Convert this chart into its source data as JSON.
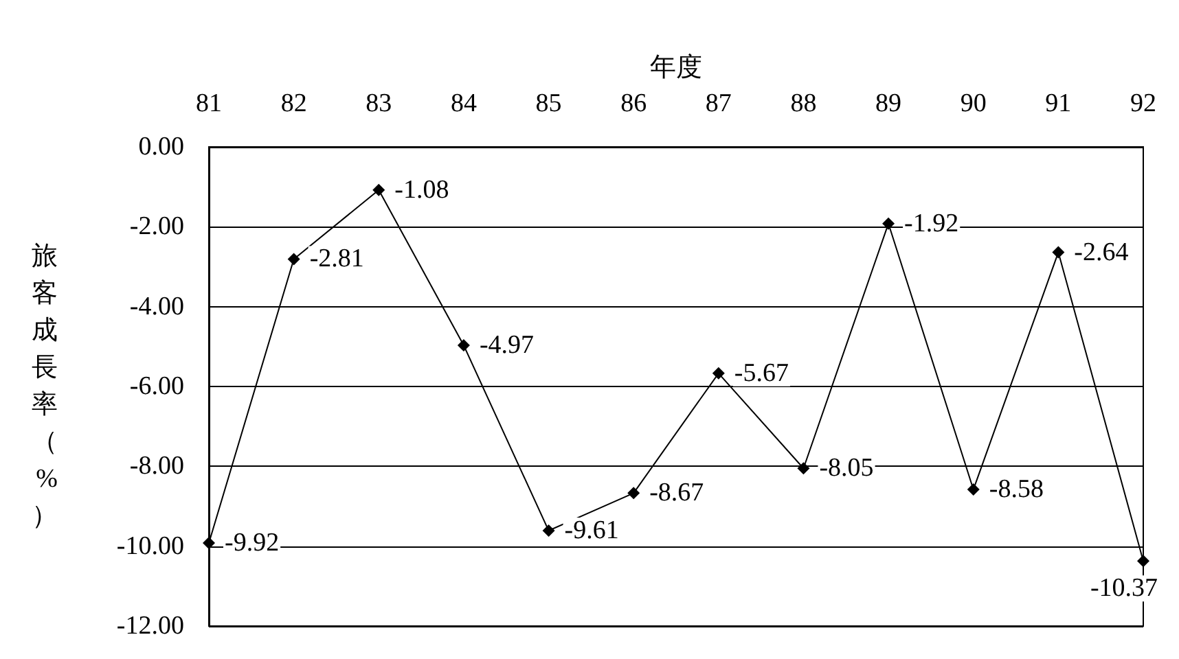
{
  "chart_data": {
    "type": "line",
    "xlabel": "年度",
    "ylabel": "旅客成長率（%）",
    "categories": [
      "81",
      "82",
      "83",
      "84",
      "85",
      "86",
      "87",
      "88",
      "89",
      "90",
      "91",
      "92"
    ],
    "series": [
      {
        "color": "#000000",
        "values": [
          -9.92,
          -2.81,
          -1.08,
          -4.97,
          -9.61,
          -8.67,
          -5.67,
          -8.05,
          -1.92,
          -8.58,
          -2.64,
          -10.37
        ]
      }
    ],
    "ylim": [
      -12,
      0
    ],
    "yticks": [
      {
        "value": -12,
        "label": "-12.00"
      },
      {
        "value": -10,
        "label": "-10.00"
      },
      {
        "value": -8,
        "label": "-8.00"
      },
      {
        "value": -6,
        "label": "-6.00"
      },
      {
        "value": -4,
        "label": "-4.00"
      },
      {
        "value": -2,
        "label": "-2.00"
      },
      {
        "value": 0,
        "label": "0.00"
      }
    ],
    "grid": "y",
    "marker": "diamond",
    "line_style": "solid",
    "data_labels": true
  }
}
